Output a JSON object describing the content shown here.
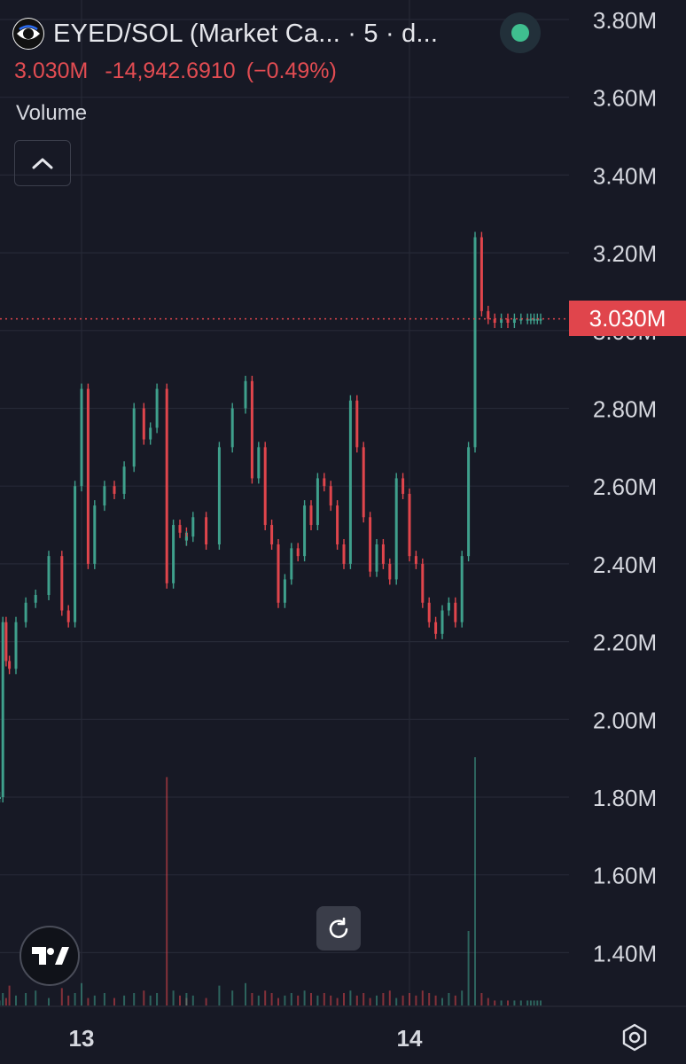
{
  "header": {
    "symbol_text": "EYED/SOL (Market Ca... · 5 · d...",
    "logo_icon": "eye-token-logo",
    "status_icon": "market-open-dot",
    "status_color": "#3fbf8f"
  },
  "quote": {
    "last": "3.030M",
    "change": "-14,942.6910",
    "change_pct": "(−0.49%)",
    "color": "#e24c52"
  },
  "volume_label": "Volume",
  "price_tag": "3.030M",
  "icons": {
    "collapse": "chevron-up-icon",
    "reset": "reset-chart-icon",
    "brand": "tradingview-logo-icon",
    "settings": "settings-gear-icon"
  },
  "colors": {
    "background": "#171925",
    "up": "#3fa08c",
    "down": "#e0454c",
    "grid": "#262936"
  },
  "chart_data": {
    "type": "line",
    "title": "EYED/SOL (Market Ca... · 5 · d...",
    "ylabel": "",
    "xlabel": "",
    "y_ticks": [
      "3.80M",
      "3.60M",
      "3.40M",
      "3.20M",
      "3.00M",
      "2.80M",
      "2.60M",
      "2.40M",
      "2.20M",
      "2.00M",
      "1.80M",
      "1.60M",
      "1.40M"
    ],
    "x_ticks": [
      {
        "label": "13",
        "x": 0
      },
      {
        "label": "14",
        "x": 1
      }
    ],
    "x": [
      -0.25,
      -0.24,
      -0.23,
      -0.22,
      -0.2,
      -0.17,
      -0.14,
      -0.1,
      -0.06,
      -0.04,
      -0.02,
      0.0,
      0.02,
      0.04,
      0.07,
      0.1,
      0.13,
      0.16,
      0.19,
      0.21,
      0.23,
      0.26,
      0.28,
      0.3,
      0.32,
      0.32,
      0.34,
      0.38,
      0.42,
      0.46,
      0.5,
      0.52,
      0.54,
      0.56,
      0.58,
      0.6,
      0.62,
      0.64,
      0.66,
      0.68,
      0.7,
      0.72,
      0.74,
      0.76,
      0.78,
      0.8,
      0.82,
      0.84,
      0.86,
      0.88,
      0.9,
      0.92,
      0.94,
      0.96,
      0.98,
      1.0,
      1.02,
      1.04,
      1.06,
      1.08,
      1.1,
      1.12,
      1.14,
      1.16,
      1.18,
      1.2,
      1.22,
      1.24,
      1.26,
      1.28,
      1.3,
      1.32,
      1.34,
      1.36,
      1.37,
      1.38,
      1.39,
      1.4
    ],
    "series": [
      {
        "values": [
          1.8,
          2.25,
          2.15,
          2.13,
          2.25,
          2.3,
          2.32,
          2.42,
          2.28,
          2.25,
          2.6,
          2.85,
          2.4,
          2.55,
          2.6,
          2.58,
          2.65,
          2.8,
          2.72,
          2.75,
          2.85,
          2.35,
          2.5,
          2.48,
          2.46,
          2.47,
          2.52,
          2.45,
          2.7,
          2.8,
          2.87,
          2.62,
          2.7,
          2.5,
          2.45,
          2.3,
          2.36,
          2.44,
          2.42,
          2.55,
          2.5,
          2.62,
          2.6,
          2.55,
          2.45,
          2.4,
          2.82,
          2.7,
          2.52,
          2.38,
          2.45,
          2.4,
          2.36,
          2.62,
          2.58,
          2.42,
          2.4,
          2.3,
          2.25,
          2.22,
          2.28,
          2.3,
          2.25,
          2.42,
          2.7,
          3.24,
          3.05,
          3.03,
          3.02,
          3.03,
          3.02,
          3.03,
          3.03,
          3.03,
          3.03,
          3.03,
          3.03,
          3.03
        ],
        "volume": [
          0.02,
          0.05,
          0.03,
          0.08,
          0.04,
          0.05,
          0.06,
          0.03,
          0.07,
          0.04,
          0.05,
          0.09,
          0.03,
          0.04,
          0.05,
          0.03,
          0.04,
          0.05,
          0.06,
          0.04,
          0.05,
          0.92,
          0.06,
          0.04,
          0.03,
          0.05,
          0.04,
          0.03,
          0.08,
          0.06,
          0.09,
          0.05,
          0.04,
          0.06,
          0.05,
          0.03,
          0.04,
          0.05,
          0.04,
          0.06,
          0.05,
          0.04,
          0.05,
          0.04,
          0.03,
          0.05,
          0.06,
          0.04,
          0.05,
          0.03,
          0.04,
          0.05,
          0.06,
          0.03,
          0.04,
          0.05,
          0.04,
          0.06,
          0.05,
          0.04,
          0.03,
          0.05,
          0.04,
          0.06,
          0.3,
          1.0,
          0.05,
          0.03,
          0.02,
          0.02,
          0.02,
          0.02,
          0.02,
          0.02,
          0.02,
          0.02,
          0.02,
          0.02
        ]
      }
    ],
    "last_price": 3.03
  }
}
